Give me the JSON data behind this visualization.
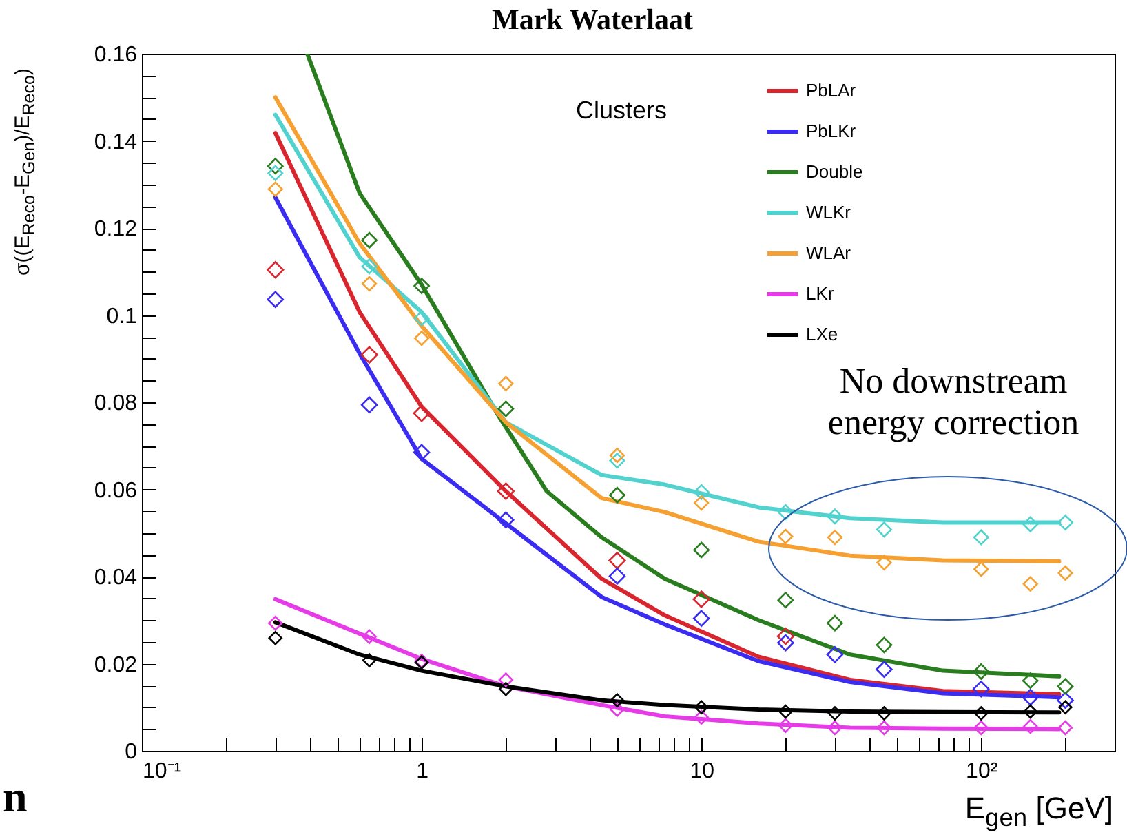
{
  "chart_data": {
    "type": "scatter",
    "title": "Mark Waterlaat",
    "xlabel": "E$_{gen}$ [GeV]",
    "ylabel": "σ((E$_{Reco}$-E$_{Gen}$)/E$_{Reco}$)",
    "annotations": [
      "Clusters",
      "No downstream energy correction",
      "n"
    ],
    "log": "x",
    "grid": false,
    "legend": "top right",
    "xlim": [
      0.1,
      300
    ],
    "ylim": [
      0,
      0.16
    ],
    "xticks": [
      {
        "value": 0.1,
        "label": "10⁻¹"
      },
      {
        "value": 0.2,
        "label": null
      },
      {
        "value": 0.3,
        "label": null
      },
      {
        "value": 0.4,
        "label": null
      },
      {
        "value": 0.5,
        "label": null
      },
      {
        "value": 0.6,
        "label": null
      },
      {
        "value": 0.7,
        "label": null
      },
      {
        "value": 0.8,
        "label": null
      },
      {
        "value": 0.9,
        "label": null
      },
      1,
      {
        "value": 2,
        "label": null
      },
      {
        "value": 3,
        "label": null
      },
      {
        "value": 4,
        "label": null
      },
      {
        "value": 5,
        "label": null
      },
      {
        "value": 6,
        "label": null
      },
      {
        "value": 7,
        "label": null
      },
      {
        "value": 8,
        "label": null
      },
      {
        "value": 9,
        "label": null
      },
      10,
      {
        "value": 20,
        "label": null
      },
      {
        "value": 30,
        "label": null
      },
      {
        "value": 40,
        "label": null
      },
      {
        "value": 50,
        "label": null
      },
      {
        "value": 60,
        "label": null
      },
      {
        "value": 70,
        "label": null
      },
      {
        "value": 80,
        "label": null
      },
      {
        "value": 90,
        "label": null
      },
      {
        "value": 100,
        "label": "10²"
      },
      {
        "value": 200,
        "label": null
      }
    ],
    "yticks": [
      0,
      {
        "value": 0.005,
        "label": null
      },
      {
        "value": 0.01,
        "label": null
      },
      {
        "value": 0.015,
        "label": null
      },
      0.02,
      {
        "value": 0.025,
        "label": null
      },
      {
        "value": 0.03,
        "label": null
      },
      {
        "value": 0.035,
        "label": null
      },
      0.04,
      {
        "value": 0.045,
        "label": null
      },
      {
        "value": 0.05,
        "label": null
      },
      {
        "value": 0.055,
        "label": null
      },
      0.06,
      {
        "value": 0.065,
        "label": null
      },
      {
        "value": 0.07,
        "label": null
      },
      {
        "value": 0.075,
        "label": null
      },
      0.08,
      {
        "value": 0.085,
        "label": null
      },
      {
        "value": 0.09,
        "label": null
      },
      {
        "value": 0.095,
        "label": null
      },
      0.1,
      {
        "value": 0.105,
        "label": null
      },
      {
        "value": 0.11,
        "label": null
      },
      {
        "value": 0.115,
        "label": null
      },
      0.12,
      {
        "value": 0.125,
        "label": null
      },
      {
        "value": 0.13,
        "label": null
      },
      {
        "value": 0.135,
        "label": null
      },
      0.14,
      {
        "value": 0.145,
        "label": null
      },
      {
        "value": 0.15,
        "label": null
      },
      {
        "value": 0.155,
        "label": null
      },
      0.16
    ],
    "series": [
      {
        "type": "line",
        "name": "PbLAr",
        "color": "#d9262e",
        "x": [
          0.3,
          0.6,
          1,
          2,
          4.4,
          7.4,
          16,
          34,
          73,
          190
        ],
        "values": [
          0.1418,
          0.1007,
          0.079,
          0.0596,
          0.0395,
          0.0311,
          0.0216,
          0.0163,
          0.0137,
          0.013
        ]
      },
      {
        "type": "line",
        "name": "PbLKr",
        "color": "#3a2cf0",
        "x": [
          0.3,
          0.6,
          1,
          2,
          4.4,
          7.4,
          16,
          34,
          73,
          190
        ],
        "values": [
          0.127,
          0.0912,
          0.067,
          0.0522,
          0.0353,
          0.029,
          0.0206,
          0.0158,
          0.0132,
          0.0123
        ]
      },
      {
        "type": "line",
        "name": "Double",
        "color": "#2a7d1e",
        "x": [
          0.39,
          0.6,
          1,
          1.9,
          2.8,
          4.4,
          7.4,
          16,
          34,
          73,
          190
        ],
        "values": [
          0.16,
          0.128,
          0.107,
          0.0765,
          0.0596,
          0.049,
          0.0395,
          0.03,
          0.0221,
          0.0184,
          0.0171
        ]
      },
      {
        "type": "line",
        "name": "WLKr",
        "color": "#52d2ce",
        "x": [
          0.3,
          0.6,
          1,
          2,
          4.4,
          7.4,
          16,
          34,
          73,
          190
        ],
        "values": [
          0.146,
          0.1133,
          0.1007,
          0.0754,
          0.0633,
          0.0611,
          0.0559,
          0.0534,
          0.0524,
          0.0524
        ]
      },
      {
        "type": "line",
        "name": "WLAr",
        "color": "#f5a030",
        "x": [
          0.3,
          0.6,
          1,
          2,
          4.4,
          7.4,
          16,
          34,
          73,
          190
        ],
        "values": [
          0.15,
          0.1165,
          0.0975,
          0.0754,
          0.058,
          0.0548,
          0.048,
          0.0448,
          0.0437,
          0.0435
        ]
      },
      {
        "type": "line",
        "name": "LKr",
        "color": "#e63ce8",
        "x": [
          0.3,
          0.6,
          1,
          2,
          4.4,
          7.4,
          16,
          34,
          73,
          190
        ],
        "values": [
          0.0348,
          0.0269,
          0.0211,
          0.0148,
          0.0105,
          0.0079,
          0.0063,
          0.0053,
          0.0051,
          0.005
        ]
      },
      {
        "type": "line",
        "name": "LXe",
        "color": "#000000",
        "x": [
          0.3,
          0.6,
          1,
          2,
          4.4,
          7.4,
          16,
          34,
          73,
          190
        ],
        "values": [
          0.0295,
          0.0221,
          0.0184,
          0.0148,
          0.0116,
          0.0105,
          0.0095,
          0.009,
          0.0089,
          0.0088
        ]
      },
      {
        "marker": "diamond",
        "color": "#d9262e",
        "x": [
          0.3,
          0.65,
          1,
          2,
          5,
          10,
          20
        ],
        "values": [
          0.1104,
          0.0909,
          0.0775,
          0.0596,
          0.0437,
          0.0348,
          0.0263
        ]
      },
      {
        "marker": "diamond",
        "color": "#3a2cf0",
        "x": [
          0.3,
          0.65,
          1,
          2,
          5,
          10,
          20,
          30,
          45,
          100,
          150,
          200
        ],
        "values": [
          0.1036,
          0.0794,
          0.0685,
          0.053,
          0.0401,
          0.0304,
          0.0248,
          0.0221,
          0.0187,
          0.0142,
          0.0123,
          0.0116
        ]
      },
      {
        "marker": "diamond",
        "color": "#2a7d1e",
        "x": [
          0.3,
          0.65,
          1,
          2,
          5,
          10,
          20,
          30,
          45,
          100,
          150,
          200
        ],
        "values": [
          0.1342,
          0.1172,
          0.1067,
          0.0785,
          0.0587,
          0.0461,
          0.0346,
          0.0293,
          0.0243,
          0.0182,
          0.0161,
          0.0148
        ]
      },
      {
        "marker": "diamond",
        "color": "#52d2ce",
        "x": [
          0.3,
          0.65,
          1,
          5,
          10,
          20,
          30,
          45,
          100,
          150,
          200
        ],
        "values": [
          0.1326,
          0.1112,
          0.0993,
          0.0666,
          0.0594,
          0.0548,
          0.0538,
          0.0508,
          0.049,
          0.052,
          0.0524
        ]
      },
      {
        "marker": "diamond",
        "color": "#f5a030",
        "x": [
          0.3,
          0.65,
          1,
          2,
          5,
          10,
          20,
          30,
          45,
          100,
          150,
          200
        ],
        "values": [
          0.1289,
          0.1072,
          0.0947,
          0.0843,
          0.0678,
          0.0569,
          0.0492,
          0.049,
          0.0432,
          0.0417,
          0.0383,
          0.0408
        ]
      },
      {
        "marker": "diamond",
        "color": "#e63ce8",
        "x": [
          0.3,
          0.65,
          1,
          2,
          5,
          10,
          20,
          30,
          45,
          100,
          150,
          200
        ],
        "values": [
          0.0293,
          0.0262,
          0.0206,
          0.0163,
          0.0095,
          0.0077,
          0.0058,
          0.0053,
          0.0053,
          0.0053,
          0.0056,
          0.0053
        ]
      },
      {
        "marker": "diamond",
        "color": "#000000",
        "x": [
          0.3,
          0.65,
          1,
          2,
          5,
          10,
          20,
          30,
          45,
          100,
          150,
          200
        ],
        "values": [
          0.0259,
          0.0208,
          0.0203,
          0.0142,
          0.0116,
          0.01,
          0.009,
          0.0086,
          0.0086,
          0.0086,
          0.009,
          0.01
        ]
      }
    ]
  }
}
